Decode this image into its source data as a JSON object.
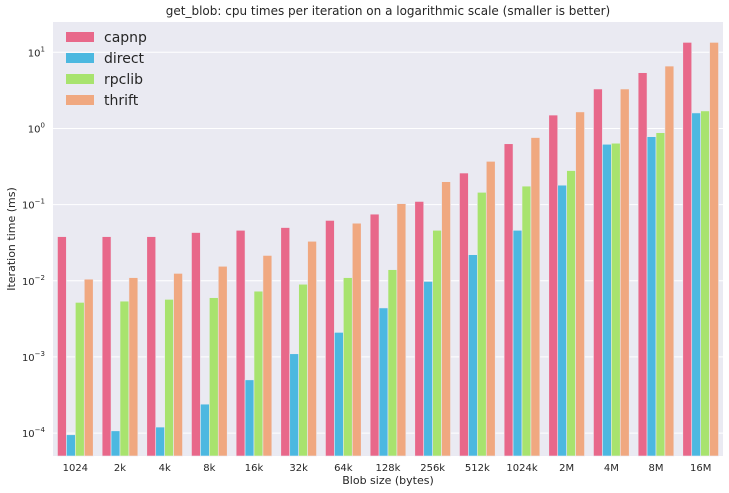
{
  "chart_data": {
    "type": "bar",
    "title": "get_blob: cpu times per iteration on a logarithmic scale (smaller is better)",
    "xlabel": "Blob size (bytes)",
    "ylabel": "Iteration time (ms)",
    "yscale": "log",
    "ylim": [
      5e-05,
      25
    ],
    "grid": true,
    "legend_position": "top-left",
    "categories": [
      "1024",
      "2k",
      "4k",
      "8k",
      "16k",
      "32k",
      "64k",
      "128k",
      "256k",
      "512k",
      "1024k",
      "2M",
      "4M",
      "8M",
      "16M"
    ],
    "yticks": [
      {
        "value": 0.0001,
        "base": "10",
        "exp": "−4"
      },
      {
        "value": 0.001,
        "base": "10",
        "exp": "−3"
      },
      {
        "value": 0.01,
        "base": "10",
        "exp": "−2"
      },
      {
        "value": 0.1,
        "base": "10",
        "exp": "−1"
      },
      {
        "value": 1,
        "base": "10",
        "exp": "0"
      },
      {
        "value": 10,
        "base": "10",
        "exp": "1"
      }
    ],
    "series": [
      {
        "name": "capnp",
        "color": "#e8688a",
        "values": [
          0.038,
          0.038,
          0.038,
          0.043,
          0.046,
          0.05,
          0.062,
          0.075,
          0.11,
          0.26,
          0.63,
          1.5,
          3.3,
          5.4,
          13.5
        ]
      },
      {
        "name": "direct",
        "color": "#4cb8e0",
        "values": [
          9.5e-05,
          0.000107,
          0.00012,
          0.00024,
          0.0005,
          0.0011,
          0.0021,
          0.0044,
          0.0098,
          0.022,
          0.046,
          0.18,
          0.62,
          0.78,
          1.6
        ]
      },
      {
        "name": "rpclib",
        "color": "#a8e36e",
        "values": [
          0.0052,
          0.0054,
          0.0057,
          0.006,
          0.0073,
          0.009,
          0.011,
          0.014,
          0.046,
          0.145,
          0.175,
          0.28,
          0.64,
          0.88,
          1.7
        ]
      },
      {
        "name": "thrift",
        "color": "#f0a880",
        "values": [
          0.0105,
          0.011,
          0.0125,
          0.0155,
          0.0215,
          0.033,
          0.057,
          0.103,
          0.2,
          0.37,
          0.76,
          1.65,
          3.3,
          6.6,
          13.5
        ]
      }
    ]
  }
}
